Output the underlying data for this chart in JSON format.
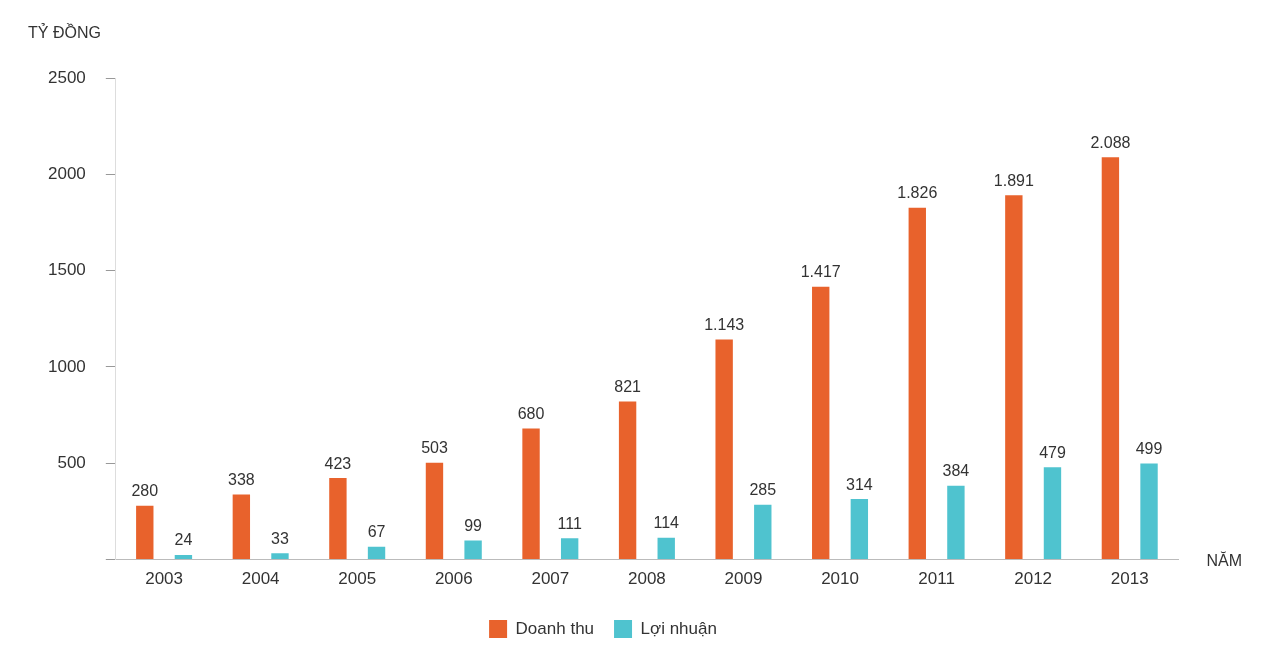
{
  "chart_data": {
    "type": "bar",
    "xlabel": "NĂM",
    "ylabel": "TỶ ĐỒNG",
    "categories": [
      "2003",
      "2004",
      "2005",
      "2006",
      "2007",
      "2008",
      "2009",
      "2010",
      "2011",
      "2012",
      "2013"
    ],
    "series": [
      {
        "name": "Doanh thu",
        "color": "#e8622c",
        "values": [
          280,
          338,
          423,
          503,
          680,
          821,
          1143,
          1417,
          1826,
          1891,
          2088
        ],
        "value_labels": [
          "280",
          "338",
          "423",
          "503",
          "680",
          "821",
          "1.143",
          "1.417",
          "1.826",
          "1.891",
          "2.088"
        ]
      },
      {
        "name": "Lợi nhuận",
        "color": "#4fc3cf",
        "values": [
          24,
          33,
          67,
          99,
          111,
          114,
          285,
          314,
          384,
          479,
          499
        ],
        "value_labels": [
          "24",
          "33",
          "67",
          "99",
          "111",
          "114",
          "285",
          "314",
          "384",
          "479",
          "499"
        ]
      }
    ],
    "ylim": [
      0,
      2500
    ],
    "yticks": [
      {
        "value": 0,
        "label": null
      },
      500,
      1000,
      1500,
      2000,
      2500
    ],
    "grid": false,
    "legend": "bottom"
  }
}
